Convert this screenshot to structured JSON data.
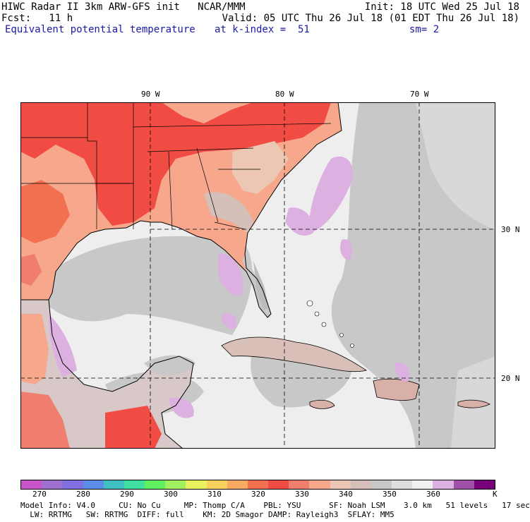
{
  "header": {
    "line1_left": "HIWC Radar II 3km ARW-GFS init   NCAR/MMM",
    "line1_right": "Init: 18 UTC Wed 25 Jul 18",
    "line2_left": "Fcst:   11 h",
    "line2_right": "Valid: 05 UTC Thu 26 Jul 18 (01 EDT Thu 26 Jul 18)",
    "field_name": "Equivalent potential temperature",
    "level": "at k-index =  51",
    "smoothing": "sm= 2"
  },
  "map": {
    "longitude_labels": [
      "90 W",
      "80 W",
      "70 W"
    ],
    "latitude_labels": [
      "30 N",
      "20 N"
    ]
  },
  "colorbar": {
    "colors": [
      "#c855c8",
      "#a070d0",
      "#8070e0",
      "#5a8ce8",
      "#40c0c0",
      "#40e0a0",
      "#60f060",
      "#a0f060",
      "#e8f060",
      "#f8d060",
      "#f8a860",
      "#f07050",
      "#f04c44",
      "#f07e6e",
      "#f7a78c",
      "#ecc8b4",
      "#d4c0b8",
      "#c8c8c8",
      "#dedede",
      "#f0f0f0",
      "#dcb0e0",
      "#a050a8",
      "#780078"
    ],
    "tick_labels": [
      "270",
      "280",
      "290",
      "300",
      "310",
      "320",
      "330",
      "340",
      "350",
      "360"
    ],
    "unit": "K"
  },
  "footer": {
    "line1": "Model Info: V4.0     CU: No Cu     MP: Thomp C/A    PBL: YSU      SF: Noah LSM    3.0 km   51 levels   17 sec",
    "line2": "  LW: RRTMG   SW: RRTMG  DIFF: full    KM: 2D Smagor DAMP: Rayleigh3  SFLAY: MM5"
  }
}
